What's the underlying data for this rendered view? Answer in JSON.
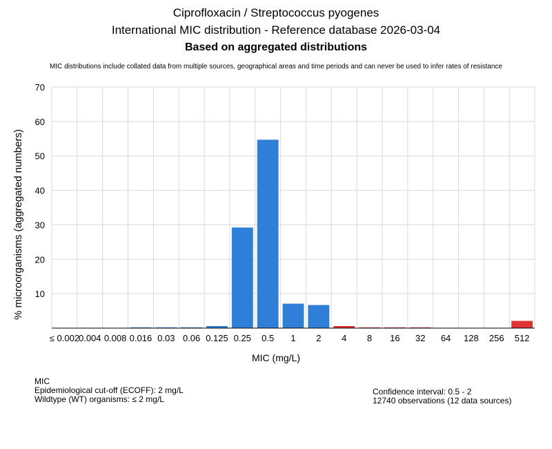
{
  "header": {
    "title_line1": "Ciprofloxacin / Streptococcus pyogenes",
    "title_line2": "International MIC distribution - Reference database 2026-03-04",
    "title_line3": "Based on aggregated distributions",
    "disclaimer": "MIC distributions include collated data from multiple sources, geographical areas and time periods and can never be used to infer rates of resistance"
  },
  "footer": {
    "section_label": "MIC",
    "ecoff": "Epidemiological cut-off (ECOFF): 2 mg/L",
    "wildtype": "Wildtype (WT) organisms: ≤ 2 mg/L",
    "confidence": "Confidence interval: 0.5 - 2",
    "observations": "12740 observations (12 data sources)"
  },
  "colors": {
    "wildtype": "#2f7fd8",
    "non_wildtype": "#e03434",
    "grid": "#d9d9d9"
  },
  "chart_data": {
    "type": "bar",
    "title": "Ciprofloxacin / Streptococcus pyogenes",
    "xlabel": "MIC (mg/L)",
    "ylabel": "% microorganisms (aggregated numbers)",
    "ylim": [
      0,
      70
    ],
    "yticks": [
      10,
      20,
      30,
      40,
      50,
      60,
      70
    ],
    "grid": true,
    "categories": [
      "≤ 0.002",
      "0.004",
      "0.008",
      "0.016",
      "0.03",
      "0.06",
      "0.125",
      "0.25",
      "0.5",
      "1",
      "2",
      "4",
      "8",
      "16",
      "32",
      "64",
      "128",
      "256",
      "512"
    ],
    "values": [
      0,
      0,
      0,
      0.2,
      0.2,
      0.2,
      0.6,
      29.2,
      54.7,
      7.1,
      6.7,
      0.6,
      0.2,
      0.2,
      0.2,
      0,
      0,
      0,
      2.1
    ],
    "wildtype": [
      true,
      true,
      true,
      true,
      true,
      true,
      true,
      true,
      true,
      true,
      true,
      false,
      false,
      false,
      false,
      false,
      false,
      false,
      false
    ]
  }
}
